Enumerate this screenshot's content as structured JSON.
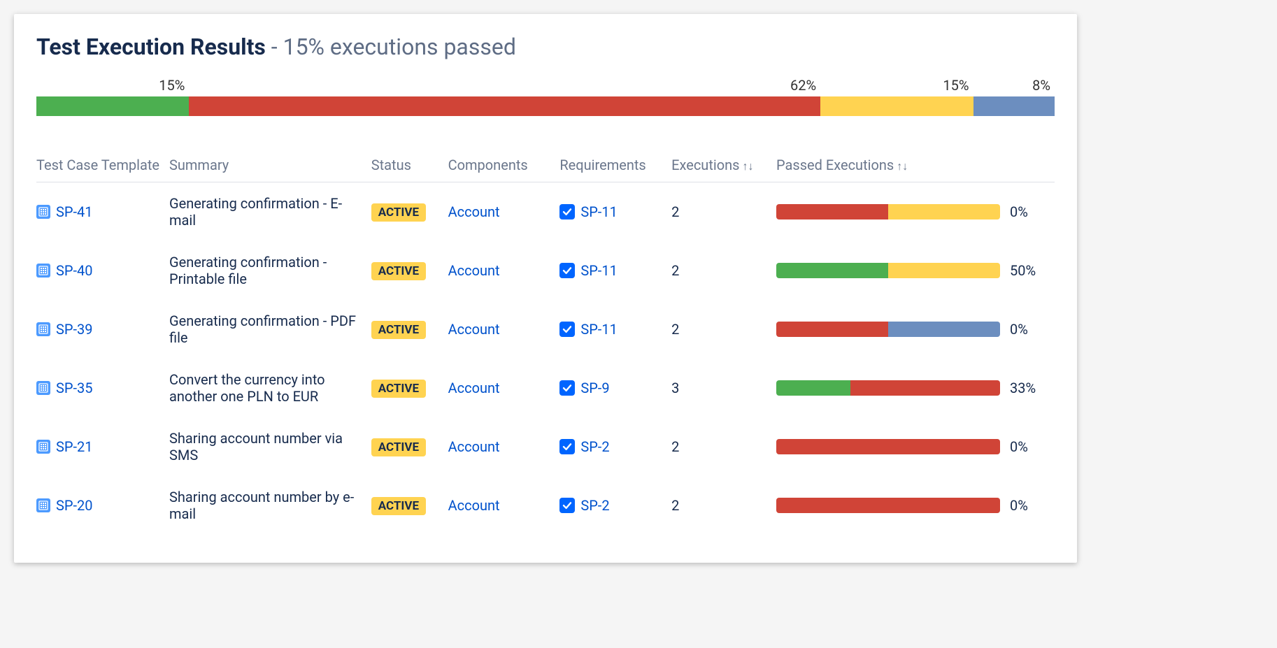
{
  "title": {
    "main": "Test Execution Results",
    "separator": " - ",
    "sub": "15% executions passed"
  },
  "colors": {
    "pass": "#4CAF50",
    "fail": "#D04437",
    "warn": "#FFD351",
    "skip": "#6C8EBF",
    "link": "#0052CC",
    "text": "#172b4d",
    "muted": "#6b778c",
    "badge_bg": "#FFD351",
    "issue_icon_bg": "#4C9AFF",
    "req_icon_bg": "#0065FF"
  },
  "summary_bar": {
    "segments": [
      {
        "label": "15%",
        "percent": 15,
        "colorKey": "pass"
      },
      {
        "label": "62%",
        "percent": 62,
        "colorKey": "fail"
      },
      {
        "label": "15%",
        "percent": 15,
        "colorKey": "warn"
      },
      {
        "label": "8%",
        "percent": 8,
        "colorKey": "skip"
      }
    ]
  },
  "columns": {
    "template": "Test Case Template",
    "summary": "Summary",
    "status": "Status",
    "components": "Components",
    "requirements": "Requirements",
    "executions": "Executions",
    "passed": "Passed Executions"
  },
  "sort_glyph": "↑↓",
  "rows": [
    {
      "key": "SP-41",
      "summary": "Generating confirmation - E-mail",
      "status": "ACTIVE",
      "component": "Account",
      "requirement": "SP-11",
      "executions": "2",
      "passed_pct": "0%",
      "bar": [
        {
          "percent": 50,
          "colorKey": "fail"
        },
        {
          "percent": 50,
          "colorKey": "warn"
        }
      ]
    },
    {
      "key": "SP-40",
      "summary": "Generating confirmation - Printable file",
      "status": "ACTIVE",
      "component": "Account",
      "requirement": "SP-11",
      "executions": "2",
      "passed_pct": "50%",
      "bar": [
        {
          "percent": 50,
          "colorKey": "pass"
        },
        {
          "percent": 50,
          "colorKey": "warn"
        }
      ]
    },
    {
      "key": "SP-39",
      "summary": "Generating confirmation - PDF file",
      "status": "ACTIVE",
      "component": "Account",
      "requirement": "SP-11",
      "executions": "2",
      "passed_pct": "0%",
      "bar": [
        {
          "percent": 50,
          "colorKey": "fail"
        },
        {
          "percent": 50,
          "colorKey": "skip"
        }
      ]
    },
    {
      "key": "SP-35",
      "summary": "Convert the currency into another one PLN to EUR",
      "status": "ACTIVE",
      "component": "Account",
      "requirement": "SP-9",
      "executions": "3",
      "passed_pct": "33%",
      "bar": [
        {
          "percent": 33,
          "colorKey": "pass"
        },
        {
          "percent": 67,
          "colorKey": "fail"
        }
      ]
    },
    {
      "key": "SP-21",
      "summary": "Sharing account number via SMS",
      "status": "ACTIVE",
      "component": "Account",
      "requirement": "SP-2",
      "executions": "2",
      "passed_pct": "0%",
      "bar": [
        {
          "percent": 100,
          "colorKey": "fail"
        }
      ]
    },
    {
      "key": "SP-20",
      "summary": "Sharing account number by e-mail",
      "status": "ACTIVE",
      "component": "Account",
      "requirement": "SP-2",
      "executions": "2",
      "passed_pct": "0%",
      "bar": [
        {
          "percent": 100,
          "colorKey": "fail"
        }
      ]
    }
  ]
}
